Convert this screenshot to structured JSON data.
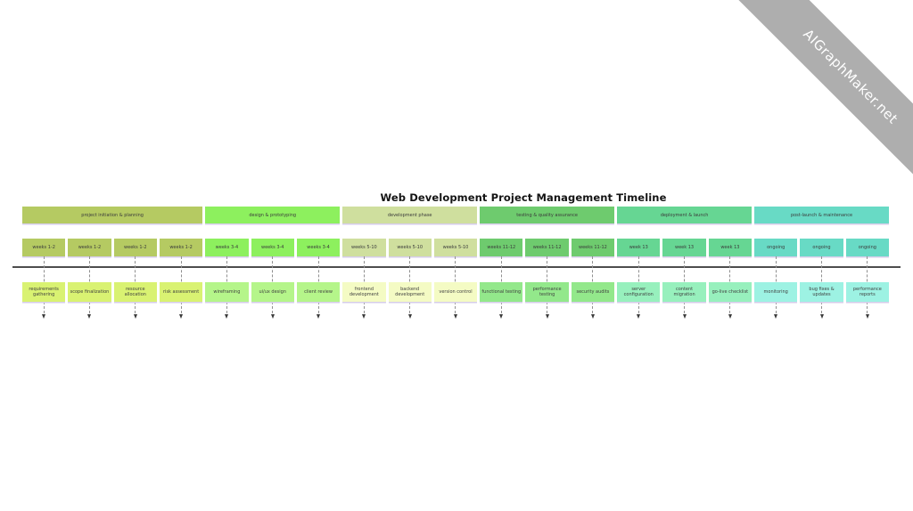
{
  "title": "Web Development Project Management Timeline",
  "watermark": "AIGraphMaker.net",
  "colors": {
    "axis": "#4d4d4d",
    "connector": "#8f8f8f",
    "box_shadow": "#d6cdea",
    "ribbon": "#aeaeae"
  },
  "phases": [
    {
      "label": "project initiation & planning",
      "bar_color": "#b5ca62",
      "week_color": "#b5ca62",
      "task_color": "#d9f272",
      "week_label": "weeks 1-2",
      "tasks": [
        "requirements gathering",
        "scope finalization",
        "resource allocation",
        "risk assessment"
      ]
    },
    {
      "label": "design & prototyping",
      "bar_color": "#8df05e",
      "week_color": "#8df05e",
      "task_color": "#b5f58a",
      "week_label": "weeks 3-4",
      "tasks": [
        "wireframing",
        "ui/ux design",
        "client review"
      ]
    },
    {
      "label": "development phase",
      "bar_color": "#cfdf9e",
      "week_color": "#cfdf9e",
      "task_color": "#f4fbc4",
      "week_label": "weeks 5-10",
      "tasks": [
        "frontend development",
        "backend development",
        "version control"
      ]
    },
    {
      "label": "testing & quality assurance",
      "bar_color": "#6ecb6e",
      "week_color": "#6ecb6e",
      "task_color": "#93e88b",
      "week_label": "weeks 11-12",
      "tasks": [
        "functional testing",
        "performance testing",
        "security audits"
      ]
    },
    {
      "label": "deployment & launch",
      "bar_color": "#66d693",
      "week_color": "#66d693",
      "task_color": "#97f0bd",
      "week_label": "week 13",
      "tasks": [
        "server configuration",
        "content migration",
        "go-live checklist"
      ]
    },
    {
      "label": "post-launch & maintenance",
      "bar_color": "#68dac5",
      "week_color": "#68dac5",
      "task_color": "#9df2e3",
      "week_label": "ongoing",
      "tasks": [
        "monitoring",
        "bug fixes & updates",
        "performance reports"
      ]
    }
  ]
}
